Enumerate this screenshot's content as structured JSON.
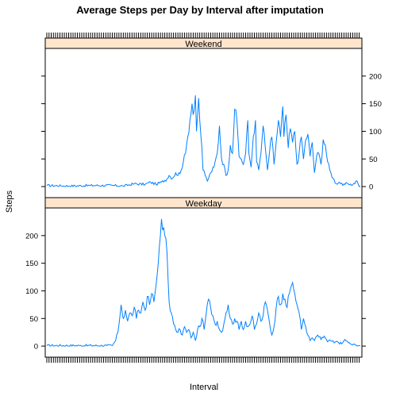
{
  "chart_data": {
    "type": "line",
    "title": "Average Steps per Day by Interval after imputation",
    "xlabel": "Interval",
    "ylabel": "Steps",
    "ylim": [
      -20,
      250
    ],
    "y_ticks": [
      0,
      50,
      100,
      150,
      200
    ],
    "x_count": 288,
    "colors": {
      "line": "#0080ff",
      "strip": "#ffe5cc"
    },
    "panels": [
      {
        "name": "Weekend",
        "strip_label": "Weekend",
        "y_axis_side": "right",
        "anchors": [
          [
            0,
            2
          ],
          [
            20,
            1
          ],
          [
            40,
            2
          ],
          [
            60,
            2
          ],
          [
            70,
            1
          ],
          [
            80,
            5
          ],
          [
            90,
            4
          ],
          [
            95,
            8
          ],
          [
            100,
            4
          ],
          [
            105,
            8
          ],
          [
            110,
            14
          ],
          [
            112,
            20
          ],
          [
            115,
            15
          ],
          [
            118,
            25
          ],
          [
            120,
            20
          ],
          [
            123,
            30
          ],
          [
            125,
            45
          ],
          [
            127,
            60
          ],
          [
            129,
            90
          ],
          [
            131,
            120
          ],
          [
            133,
            150
          ],
          [
            134,
            130
          ],
          [
            136,
            165
          ],
          [
            137,
            100
          ],
          [
            139,
            160
          ],
          [
            140,
            120
          ],
          [
            142,
            70
          ],
          [
            143,
            30
          ],
          [
            145,
            20
          ],
          [
            147,
            10
          ],
          [
            150,
            25
          ],
          [
            153,
            35
          ],
          [
            156,
            60
          ],
          [
            158,
            110
          ],
          [
            160,
            50
          ],
          [
            162,
            40
          ],
          [
            164,
            20
          ],
          [
            166,
            30
          ],
          [
            168,
            75
          ],
          [
            170,
            60
          ],
          [
            172,
            140
          ],
          [
            174,
            120
          ],
          [
            176,
            55
          ],
          [
            178,
            50
          ],
          [
            180,
            40
          ],
          [
            182,
            60
          ],
          [
            184,
            120
          ],
          [
            185,
            60
          ],
          [
            187,
            35
          ],
          [
            189,
            90
          ],
          [
            191,
            120
          ],
          [
            192,
            45
          ],
          [
            194,
            30
          ],
          [
            196,
            60
          ],
          [
            198,
            110
          ],
          [
            200,
            70
          ],
          [
            202,
            30
          ],
          [
            204,
            65
          ],
          [
            206,
            90
          ],
          [
            208,
            40
          ],
          [
            210,
            80
          ],
          [
            212,
            120
          ],
          [
            214,
            90
          ],
          [
            216,
            145
          ],
          [
            217,
            90
          ],
          [
            219,
            130
          ],
          [
            221,
            70
          ],
          [
            223,
            105
          ],
          [
            225,
            80
          ],
          [
            227,
            100
          ],
          [
            229,
            40
          ],
          [
            231,
            60
          ],
          [
            233,
            90
          ],
          [
            235,
            50
          ],
          [
            237,
            85
          ],
          [
            239,
            95
          ],
          [
            241,
            55
          ],
          [
            243,
            80
          ],
          [
            245,
            25
          ],
          [
            247,
            55
          ],
          [
            249,
            60
          ],
          [
            251,
            40
          ],
          [
            253,
            85
          ],
          [
            255,
            75
          ],
          [
            257,
            45
          ],
          [
            259,
            30
          ],
          [
            262,
            15
          ],
          [
            265,
            5
          ],
          [
            268,
            8
          ],
          [
            271,
            2
          ],
          [
            275,
            6
          ],
          [
            280,
            3
          ],
          [
            284,
            10
          ],
          [
            286,
            0
          ],
          [
            287,
            1
          ]
        ]
      },
      {
        "name": "Weekday",
        "strip_label": "Weekday",
        "y_axis_side": "left",
        "anchors": [
          [
            0,
            1
          ],
          [
            30,
            1
          ],
          [
            55,
            1
          ],
          [
            60,
            1
          ],
          [
            63,
            10
          ],
          [
            65,
            25
          ],
          [
            67,
            55
          ],
          [
            68,
            75
          ],
          [
            70,
            50
          ],
          [
            72,
            65
          ],
          [
            74,
            45
          ],
          [
            76,
            60
          ],
          [
            78,
            55
          ],
          [
            80,
            70
          ],
          [
            82,
            50
          ],
          [
            84,
            65
          ],
          [
            86,
            60
          ],
          [
            88,
            80
          ],
          [
            90,
            65
          ],
          [
            92,
            90
          ],
          [
            94,
            75
          ],
          [
            96,
            95
          ],
          [
            98,
            80
          ],
          [
            100,
            110
          ],
          [
            102,
            150
          ],
          [
            103,
            180
          ],
          [
            104,
            200
          ],
          [
            105,
            230
          ],
          [
            106,
            210
          ],
          [
            107,
            215
          ],
          [
            108,
            200
          ],
          [
            109,
            195
          ],
          [
            110,
            170
          ],
          [
            111,
            120
          ],
          [
            112,
            80
          ],
          [
            114,
            60
          ],
          [
            116,
            40
          ],
          [
            118,
            30
          ],
          [
            120,
            25
          ],
          [
            122,
            30
          ],
          [
            124,
            20
          ],
          [
            126,
            35
          ],
          [
            128,
            25
          ],
          [
            130,
            30
          ],
          [
            132,
            15
          ],
          [
            134,
            25
          ],
          [
            136,
            10
          ],
          [
            138,
            30
          ],
          [
            140,
            35
          ],
          [
            142,
            50
          ],
          [
            144,
            30
          ],
          [
            146,
            60
          ],
          [
            148,
            85
          ],
          [
            150,
            70
          ],
          [
            152,
            55
          ],
          [
            154,
            40
          ],
          [
            156,
            45
          ],
          [
            158,
            30
          ],
          [
            160,
            25
          ],
          [
            162,
            40
          ],
          [
            164,
            60
          ],
          [
            166,
            75
          ],
          [
            168,
            50
          ],
          [
            170,
            40
          ],
          [
            172,
            50
          ],
          [
            174,
            45
          ],
          [
            176,
            30
          ],
          [
            178,
            45
          ],
          [
            180,
            30
          ],
          [
            182,
            45
          ],
          [
            184,
            35
          ],
          [
            186,
            40
          ],
          [
            188,
            55
          ],
          [
            190,
            30
          ],
          [
            192,
            40
          ],
          [
            194,
            60
          ],
          [
            196,
            45
          ],
          [
            198,
            55
          ],
          [
            200,
            80
          ],
          [
            202,
            65
          ],
          [
            204,
            40
          ],
          [
            206,
            20
          ],
          [
            208,
            35
          ],
          [
            210,
            70
          ],
          [
            212,
            90
          ],
          [
            214,
            75
          ],
          [
            216,
            95
          ],
          [
            218,
            85
          ],
          [
            220,
            70
          ],
          [
            222,
            95
          ],
          [
            224,
            110
          ],
          [
            225,
            115
          ],
          [
            227,
            95
          ],
          [
            229,
            75
          ],
          [
            231,
            60
          ],
          [
            233,
            30
          ],
          [
            235,
            50
          ],
          [
            237,
            35
          ],
          [
            239,
            20
          ],
          [
            241,
            10
          ],
          [
            243,
            15
          ],
          [
            245,
            10
          ],
          [
            248,
            20
          ],
          [
            251,
            12
          ],
          [
            254,
            18
          ],
          [
            257,
            8
          ],
          [
            260,
            10
          ],
          [
            263,
            6
          ],
          [
            266,
            8
          ],
          [
            270,
            4
          ],
          [
            273,
            12
          ],
          [
            276,
            6
          ],
          [
            279,
            3
          ],
          [
            283,
            2
          ],
          [
            287,
            1
          ]
        ]
      }
    ]
  }
}
